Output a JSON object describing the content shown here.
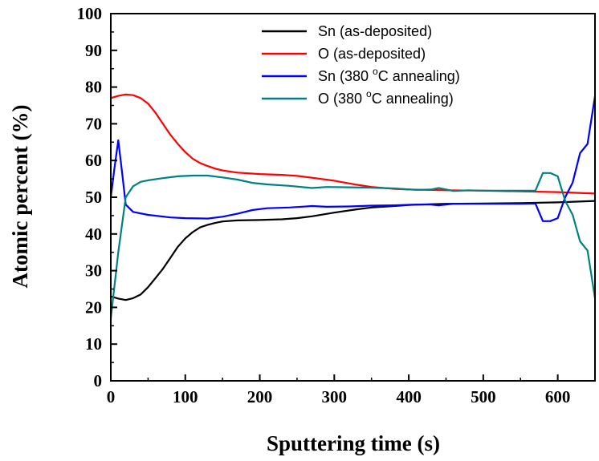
{
  "chart_data": {
    "type": "line",
    "xlabel": "Sputtering time (s)",
    "ylabel": "Atomic percent (%)",
    "xlim": [
      0,
      650
    ],
    "ylim": [
      0,
      100
    ],
    "x_ticks": [
      0,
      100,
      200,
      300,
      400,
      500,
      600
    ],
    "y_ticks": [
      0,
      10,
      20,
      30,
      40,
      50,
      60,
      70,
      80,
      90,
      100
    ],
    "x_tick_labels": [
      "0",
      "100",
      "200",
      "300",
      "400",
      "500",
      "600"
    ],
    "y_tick_labels": [
      "0",
      "10",
      "20",
      "30",
      "40",
      "50",
      "60",
      "70",
      "80",
      "90",
      "100"
    ],
    "grid": false,
    "legend_position": "top-right",
    "series": [
      {
        "name": "Sn (as-deposited)",
        "color": "#000000",
        "points": [
          [
            0,
            23
          ],
          [
            10,
            22.4
          ],
          [
            20,
            22
          ],
          [
            30,
            22.5
          ],
          [
            40,
            23.5
          ],
          [
            50,
            25.5
          ],
          [
            60,
            28
          ],
          [
            70,
            30.5
          ],
          [
            80,
            33.5
          ],
          [
            90,
            36.5
          ],
          [
            100,
            38.8
          ],
          [
            110,
            40.5
          ],
          [
            120,
            41.8
          ],
          [
            130,
            42.5
          ],
          [
            140,
            43
          ],
          [
            150,
            43.4
          ],
          [
            170,
            43.7
          ],
          [
            200,
            43.8
          ],
          [
            230,
            44
          ],
          [
            250,
            44.3
          ],
          [
            270,
            44.8
          ],
          [
            300,
            45.8
          ],
          [
            330,
            46.7
          ],
          [
            350,
            47.2
          ],
          [
            380,
            47.6
          ],
          [
            400,
            47.9
          ],
          [
            430,
            48.1
          ],
          [
            450,
            48.2
          ],
          [
            500,
            48.3
          ],
          [
            550,
            48.4
          ],
          [
            600,
            48.6
          ],
          [
            650,
            49
          ]
        ]
      },
      {
        "name": "O (as-deposited)",
        "color": "#ff0000",
        "points": [
          [
            0,
            77
          ],
          [
            10,
            77.6
          ],
          [
            20,
            78
          ],
          [
            30,
            77.8
          ],
          [
            40,
            77
          ],
          [
            50,
            75.5
          ],
          [
            60,
            73
          ],
          [
            70,
            70
          ],
          [
            80,
            67
          ],
          [
            90,
            64.5
          ],
          [
            100,
            62.3
          ],
          [
            110,
            60.5
          ],
          [
            120,
            59.3
          ],
          [
            130,
            58.5
          ],
          [
            140,
            57.8
          ],
          [
            150,
            57.3
          ],
          [
            170,
            56.7
          ],
          [
            200,
            56.3
          ],
          [
            230,
            56.1
          ],
          [
            250,
            55.8
          ],
          [
            270,
            55.3
          ],
          [
            300,
            54.5
          ],
          [
            330,
            53.4
          ],
          [
            350,
            52.8
          ],
          [
            380,
            52.3
          ],
          [
            400,
            52.1
          ],
          [
            450,
            51.9
          ],
          [
            500,
            51.8
          ],
          [
            550,
            51.6
          ],
          [
            600,
            51.4
          ],
          [
            650,
            51
          ]
        ]
      },
      {
        "name": "Sn (380 °C annealing)",
        "color": "#0000ff",
        "points": [
          [
            0,
            50
          ],
          [
            5,
            58
          ],
          [
            10,
            65.5
          ],
          [
            15,
            57
          ],
          [
            20,
            48
          ],
          [
            30,
            46
          ],
          [
            50,
            45.2
          ],
          [
            80,
            44.5
          ],
          [
            100,
            44.3
          ],
          [
            130,
            44.2
          ],
          [
            150,
            44.7
          ],
          [
            170,
            45.5
          ],
          [
            190,
            46.5
          ],
          [
            210,
            47
          ],
          [
            240,
            47.2
          ],
          [
            270,
            47.6
          ],
          [
            290,
            47.4
          ],
          [
            320,
            47.5
          ],
          [
            350,
            47.7
          ],
          [
            380,
            47.8
          ],
          [
            410,
            48
          ],
          [
            430,
            48
          ],
          [
            440,
            47.8
          ],
          [
            460,
            48.2
          ],
          [
            480,
            48.2
          ],
          [
            500,
            48.2
          ],
          [
            550,
            48.2
          ],
          [
            570,
            48.3
          ],
          [
            580,
            43.5
          ],
          [
            590,
            43.5
          ],
          [
            600,
            44.3
          ],
          [
            610,
            50
          ],
          [
            620,
            54
          ],
          [
            630,
            62
          ],
          [
            640,
            64.5
          ],
          [
            650,
            77.5
          ]
        ]
      },
      {
        "name": "O (380 °C annealing)",
        "color": "#008080",
        "points": [
          [
            0,
            17
          ],
          [
            10,
            35
          ],
          [
            20,
            50
          ],
          [
            30,
            53
          ],
          [
            40,
            54.2
          ],
          [
            50,
            54.6
          ],
          [
            70,
            55.2
          ],
          [
            90,
            55.7
          ],
          [
            110,
            55.9
          ],
          [
            130,
            55.9
          ],
          [
            150,
            55.4
          ],
          [
            170,
            54.8
          ],
          [
            190,
            53.9
          ],
          [
            210,
            53.5
          ],
          [
            240,
            53.1
          ],
          [
            270,
            52.5
          ],
          [
            290,
            52.8
          ],
          [
            320,
            52.7
          ],
          [
            350,
            52.6
          ],
          [
            380,
            52.4
          ],
          [
            410,
            52
          ],
          [
            430,
            52.1
          ],
          [
            440,
            52.5
          ],
          [
            460,
            51.7
          ],
          [
            480,
            51.9
          ],
          [
            500,
            51.8
          ],
          [
            550,
            51.8
          ],
          [
            570,
            51.8
          ],
          [
            580,
            56.6
          ],
          [
            590,
            56.6
          ],
          [
            600,
            55.7
          ],
          [
            610,
            49
          ],
          [
            620,
            45.2
          ],
          [
            630,
            38
          ],
          [
            640,
            35.5
          ],
          [
            650,
            22.5
          ]
        ]
      }
    ]
  }
}
